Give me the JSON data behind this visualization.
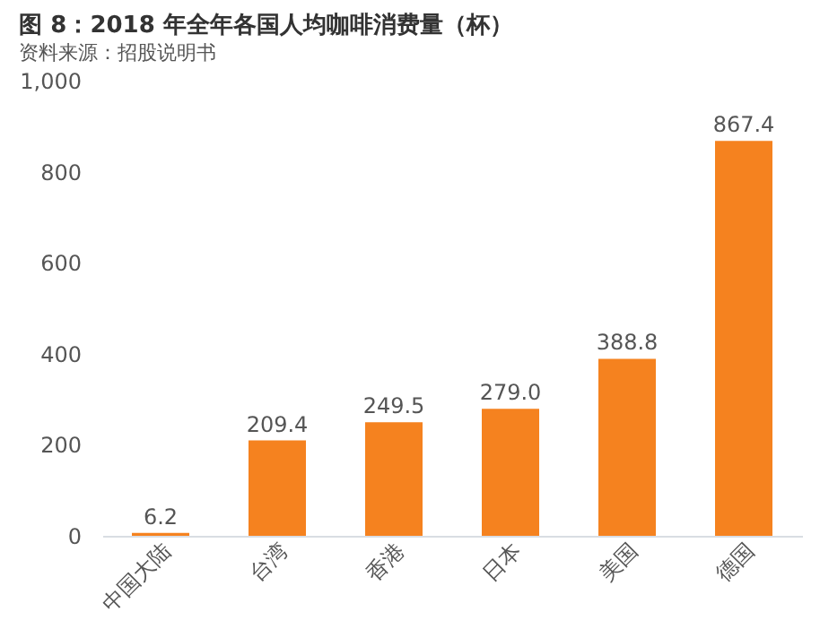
{
  "chart_data": {
    "type": "bar",
    "title": "图 8：2018 年全年各国人均咖啡消费量（杯）",
    "categories": [
      "中国大陆",
      "台湾",
      "香港",
      "日本",
      "美国",
      "德国"
    ],
    "values": [
      6.2,
      209.4,
      249.5,
      279.0,
      388.8,
      867.4
    ],
    "value_labels": [
      "6.2",
      "209.4",
      "249.5",
      "279.0",
      "388.8",
      "867.4"
    ],
    "color": "#f5821f",
    "ylim": [
      0,
      1000
    ],
    "yticks": [
      0,
      200,
      400,
      600,
      800,
      {
        "value": 1000,
        "label": "1,000"
      }
    ],
    "grid": false,
    "annotations": [
      "资料来源：招股说明书"
    ]
  }
}
